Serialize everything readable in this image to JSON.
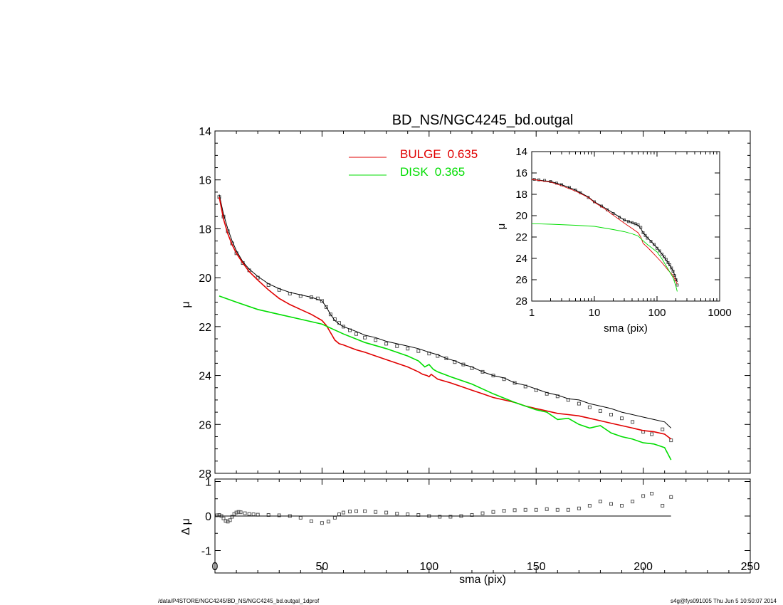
{
  "colors": {
    "bulge": "#e00000",
    "disk": "#00dd00",
    "model": "#000000",
    "data": "#555555"
  },
  "footer": {
    "left": "/data/P4STORE/NGC4245/BD_NS/NGC4245_bd.outgal_1dprof",
    "right": "s4g@fys091005  Thu Jun  5 10:50:07 2014"
  },
  "chart_data": [
    {
      "type": "line",
      "title": "BD_NS/NGC4245_bd.outgal",
      "xlabel": "",
      "ylabel": "μ",
      "xlim": [
        0,
        250
      ],
      "ylim": [
        28,
        14
      ],
      "yticks": [
        "14",
        "16",
        "18",
        "20",
        "22",
        "24",
        "26",
        "28"
      ],
      "legend": {
        "placement": "top-center",
        "entries": [
          {
            "label": "BULGE",
            "value": "0.635",
            "color": "#e00000"
          },
          {
            "label": "DISK",
            "value": "0.365",
            "color": "#00dd00"
          }
        ]
      },
      "series": [
        {
          "key": "data",
          "style": "squares",
          "x": [
            2,
            4,
            6,
            8,
            10,
            13,
            16,
            20,
            25,
            30,
            35,
            40,
            45,
            48,
            50,
            52,
            54,
            56,
            58,
            60,
            63,
            66,
            70,
            75,
            80,
            85,
            90,
            95,
            100,
            104,
            108,
            112,
            116,
            120,
            125,
            130,
            135,
            140,
            145,
            150,
            155,
            160,
            165,
            170,
            175,
            180,
            185,
            190,
            195,
            200,
            204,
            209,
            213
          ],
          "y": [
            16.7,
            17.5,
            18.1,
            18.6,
            19.0,
            19.4,
            19.7,
            20.0,
            20.3,
            20.5,
            20.65,
            20.75,
            20.8,
            20.85,
            20.95,
            21.2,
            21.5,
            21.7,
            21.85,
            22.0,
            22.15,
            22.3,
            22.45,
            22.55,
            22.7,
            22.8,
            22.9,
            23.0,
            23.1,
            23.2,
            23.3,
            23.45,
            23.55,
            23.7,
            23.85,
            24.0,
            24.15,
            24.3,
            24.45,
            24.6,
            24.75,
            24.85,
            25.0,
            25.15,
            25.3,
            25.45,
            25.6,
            25.75,
            25.9,
            26.3,
            26.4,
            26.2,
            26.65
          ]
        },
        {
          "key": "model",
          "x": [
            2,
            4,
            6,
            8,
            10,
            13,
            16,
            20,
            25,
            30,
            35,
            40,
            45,
            50,
            52,
            54,
            56,
            58,
            60,
            63,
            66,
            70,
            75,
            80,
            85,
            90,
            95,
            100,
            104,
            108,
            112,
            116,
            120,
            125,
            130,
            135,
            140,
            145,
            150,
            155,
            160,
            165,
            170,
            175,
            180,
            185,
            190,
            195,
            200,
            205,
            210,
            213
          ],
          "y": [
            16.6,
            17.4,
            18.0,
            18.5,
            18.9,
            19.35,
            19.65,
            19.95,
            20.25,
            20.45,
            20.6,
            20.7,
            20.8,
            20.95,
            21.2,
            21.5,
            21.75,
            21.9,
            22.0,
            22.1,
            22.2,
            22.35,
            22.45,
            22.6,
            22.7,
            22.8,
            22.9,
            23.05,
            23.15,
            23.3,
            23.4,
            23.55,
            23.65,
            23.85,
            24.0,
            24.1,
            24.3,
            24.4,
            24.55,
            24.7,
            24.8,
            24.95,
            25.0,
            25.15,
            25.25,
            25.35,
            25.5,
            25.6,
            25.7,
            25.8,
            25.9,
            26.15
          ]
        },
        {
          "key": "bulge",
          "name": "BULGE",
          "x": [
            2,
            4,
            6,
            8,
            10,
            13,
            16,
            20,
            25,
            30,
            35,
            40,
            45,
            50,
            52,
            54,
            56,
            58,
            60,
            63,
            66,
            70,
            75,
            80,
            85,
            90,
            95,
            97,
            99,
            100,
            101,
            104,
            110,
            115,
            120,
            125,
            130,
            135,
            140,
            145,
            150,
            155,
            160,
            165,
            170,
            175,
            180,
            185,
            190,
            195,
            200,
            205,
            210,
            213
          ],
          "y": [
            16.7,
            17.6,
            18.2,
            18.65,
            19.0,
            19.4,
            19.75,
            20.1,
            20.5,
            20.85,
            21.1,
            21.3,
            21.5,
            21.75,
            21.95,
            22.25,
            22.55,
            22.7,
            22.75,
            22.85,
            22.95,
            23.05,
            23.2,
            23.35,
            23.5,
            23.65,
            23.85,
            23.95,
            24.0,
            24.05,
            23.95,
            24.15,
            24.3,
            24.45,
            24.6,
            24.75,
            24.9,
            25.0,
            25.1,
            25.25,
            25.35,
            25.45,
            25.55,
            25.6,
            25.65,
            25.75,
            25.85,
            25.95,
            26.05,
            26.15,
            26.25,
            26.3,
            26.4,
            26.6
          ]
        },
        {
          "key": "disk",
          "name": "DISK",
          "x": [
            2,
            10,
            20,
            30,
            40,
            50,
            55,
            60,
            70,
            80,
            90,
            95,
            98,
            100,
            102,
            104,
            110,
            120,
            130,
            140,
            150,
            155,
            160,
            165,
            170,
            175,
            180,
            185,
            190,
            195,
            200,
            205,
            210,
            213
          ],
          "y": [
            20.75,
            21.0,
            21.3,
            21.5,
            21.7,
            21.9,
            22.1,
            22.3,
            22.65,
            22.9,
            23.2,
            23.4,
            23.65,
            23.55,
            23.75,
            23.85,
            24.05,
            24.35,
            24.75,
            25.1,
            25.4,
            25.5,
            25.8,
            25.75,
            26.0,
            26.15,
            26.05,
            26.35,
            26.5,
            26.6,
            26.75,
            26.8,
            26.95,
            27.45
          ]
        }
      ]
    },
    {
      "type": "scatter",
      "xlabel": "sma (pix)",
      "ylabel": "Δ μ",
      "xlim": [
        0,
        250
      ],
      "ylim": [
        -1,
        1
      ],
      "xticks": [
        "0",
        "50",
        "100",
        "150",
        "200",
        "250"
      ],
      "yticks": [
        "1",
        "0",
        "-1"
      ],
      "series": [
        {
          "key": "residual",
          "style": "squares",
          "x": [
            1,
            2,
            3,
            4,
            5,
            6,
            7,
            8,
            9,
            10,
            11,
            12,
            14,
            16,
            18,
            20,
            25,
            30,
            35,
            40,
            45,
            50,
            53,
            56,
            58,
            60,
            63,
            66,
            70,
            75,
            80,
            85,
            90,
            95,
            100,
            105,
            110,
            115,
            120,
            125,
            130,
            135,
            140,
            145,
            150,
            155,
            160,
            165,
            170,
            175,
            180,
            185,
            190,
            195,
            200,
            204,
            209,
            213
          ],
          "y": [
            0.02,
            0.03,
            0.0,
            -0.07,
            -0.14,
            -0.16,
            -0.12,
            -0.02,
            0.06,
            0.1,
            0.12,
            0.11,
            0.08,
            0.06,
            0.05,
            0.04,
            0.03,
            0.02,
            0.0,
            -0.05,
            -0.15,
            -0.2,
            -0.16,
            -0.05,
            0.05,
            0.1,
            0.13,
            0.14,
            0.14,
            0.12,
            0.1,
            0.07,
            0.05,
            0.03,
            0.0,
            -0.02,
            -0.02,
            0.0,
            0.03,
            0.08,
            0.12,
            0.15,
            0.17,
            0.18,
            0.18,
            0.2,
            0.18,
            0.18,
            0.22,
            0.3,
            0.42,
            0.35,
            0.3,
            0.42,
            0.58,
            0.65,
            0.3,
            0.55
          ]
        },
        {
          "key": "zero",
          "x": [
            0,
            213
          ],
          "y": [
            0,
            0
          ]
        }
      ]
    },
    {
      "type": "line",
      "xlabel": "sma (pix)",
      "ylabel": "μ",
      "xscale": "log",
      "xlim": [
        1,
        1000
      ],
      "ylim": [
        28,
        14
      ],
      "xticks": [
        "1",
        "10",
        "100",
        "1000"
      ],
      "yticks": [
        "14",
        "16",
        "18",
        "20",
        "22",
        "24",
        "26",
        "28"
      ],
      "series": [
        {
          "key": "data",
          "style": "squares",
          "x": [
            1.1,
            1.3,
            1.6,
            2,
            2.5,
            3,
            4,
            5,
            6,
            8,
            10,
            13,
            16,
            20,
            25,
            30,
            35,
            40,
            45,
            50,
            55,
            60,
            65,
            70,
            80,
            90,
            100,
            110,
            120,
            130,
            140,
            150,
            160,
            170,
            180,
            190,
            200,
            210
          ],
          "y": [
            16.6,
            16.65,
            16.7,
            16.8,
            16.95,
            17.1,
            17.35,
            17.6,
            17.85,
            18.3,
            18.7,
            19.1,
            19.45,
            19.8,
            20.15,
            20.4,
            20.55,
            20.65,
            20.75,
            20.85,
            21.1,
            21.6,
            21.85,
            22.1,
            22.4,
            22.7,
            23.05,
            23.3,
            23.6,
            23.85,
            24.1,
            24.4,
            24.6,
            24.9,
            25.2,
            25.6,
            26.0,
            26.5
          ]
        },
        {
          "key": "model",
          "x": [
            1,
            2,
            3,
            5,
            8,
            10,
            15,
            20,
            30,
            40,
            50,
            55,
            60,
            70,
            80,
            100,
            120,
            150,
            180,
            210
          ],
          "y": [
            16.6,
            16.8,
            17.1,
            17.6,
            18.25,
            18.7,
            19.3,
            19.75,
            20.4,
            20.65,
            20.9,
            21.2,
            21.6,
            22.05,
            22.4,
            23.0,
            23.6,
            24.4,
            25.15,
            26.2
          ]
        },
        {
          "key": "bulge",
          "x": [
            1,
            2,
            3,
            5,
            8,
            10,
            15,
            20,
            30,
            40,
            50,
            55,
            60,
            70,
            80,
            100,
            120,
            150,
            180,
            210
          ],
          "y": [
            16.6,
            16.85,
            17.2,
            17.7,
            18.3,
            18.75,
            19.4,
            19.95,
            20.7,
            21.2,
            21.6,
            22.0,
            22.6,
            22.95,
            23.3,
            23.9,
            24.4,
            25.1,
            25.6,
            26.4
          ]
        },
        {
          "key": "disk",
          "x": [
            1,
            2,
            5,
            10,
            20,
            30,
            40,
            50,
            60,
            70,
            80,
            100,
            120,
            150,
            180,
            200,
            210
          ],
          "y": [
            20.75,
            20.8,
            20.9,
            21.0,
            21.3,
            21.5,
            21.7,
            21.9,
            22.35,
            22.7,
            22.95,
            23.4,
            24.05,
            25.0,
            25.8,
            26.6,
            27.1
          ]
        }
      ]
    }
  ]
}
